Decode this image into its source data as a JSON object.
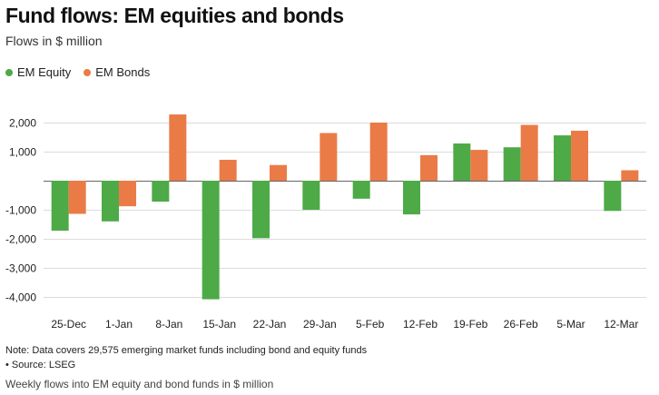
{
  "header": {
    "title": "Fund flows: EM equities and bonds",
    "subtitle": "Flows in $ million"
  },
  "footer": {
    "note": "Note: Data covers 29,575 emerging market funds including bond and equity funds",
    "source": "• Source: LSEG",
    "caption": "Weekly flows into EM equity and bond funds in $ million"
  },
  "chart_data": {
    "type": "bar",
    "title": "Fund flows: EM equities and bonds",
    "subtitle": "Flows in $ million",
    "categories": [
      "25-Dec",
      "1-Jan",
      "8-Jan",
      "15-Jan",
      "22-Jan",
      "29-Jan",
      "5-Feb",
      "12-Feb",
      "19-Feb",
      "26-Feb",
      "5-Mar",
      "12-Mar"
    ],
    "series": [
      {
        "name": "EM Equity",
        "color": "#4daa47",
        "values": [
          -1720,
          -1400,
          -720,
          -4080,
          -1980,
          -1000,
          -620,
          -1160,
          1280,
          1150,
          1560,
          -1040
        ]
      },
      {
        "name": "EM Bonds",
        "color": "#ea7b47",
        "values": [
          -1140,
          -880,
          2280,
          720,
          540,
          1640,
          2000,
          880,
          1060,
          1920,
          1720,
          360
        ]
      }
    ],
    "yticks": [
      2000,
      1000,
      0,
      -1000,
      -2000,
      -3000,
      -4000
    ],
    "ytick_labels": [
      "2,000",
      "1,000",
      "",
      "-1,000",
      "-2,000",
      "-3,000",
      "-4,000"
    ],
    "ylim": [
      -4400,
      2500
    ],
    "xlabel": "",
    "ylabel": "",
    "grid": true,
    "legend_position": "top-left"
  }
}
